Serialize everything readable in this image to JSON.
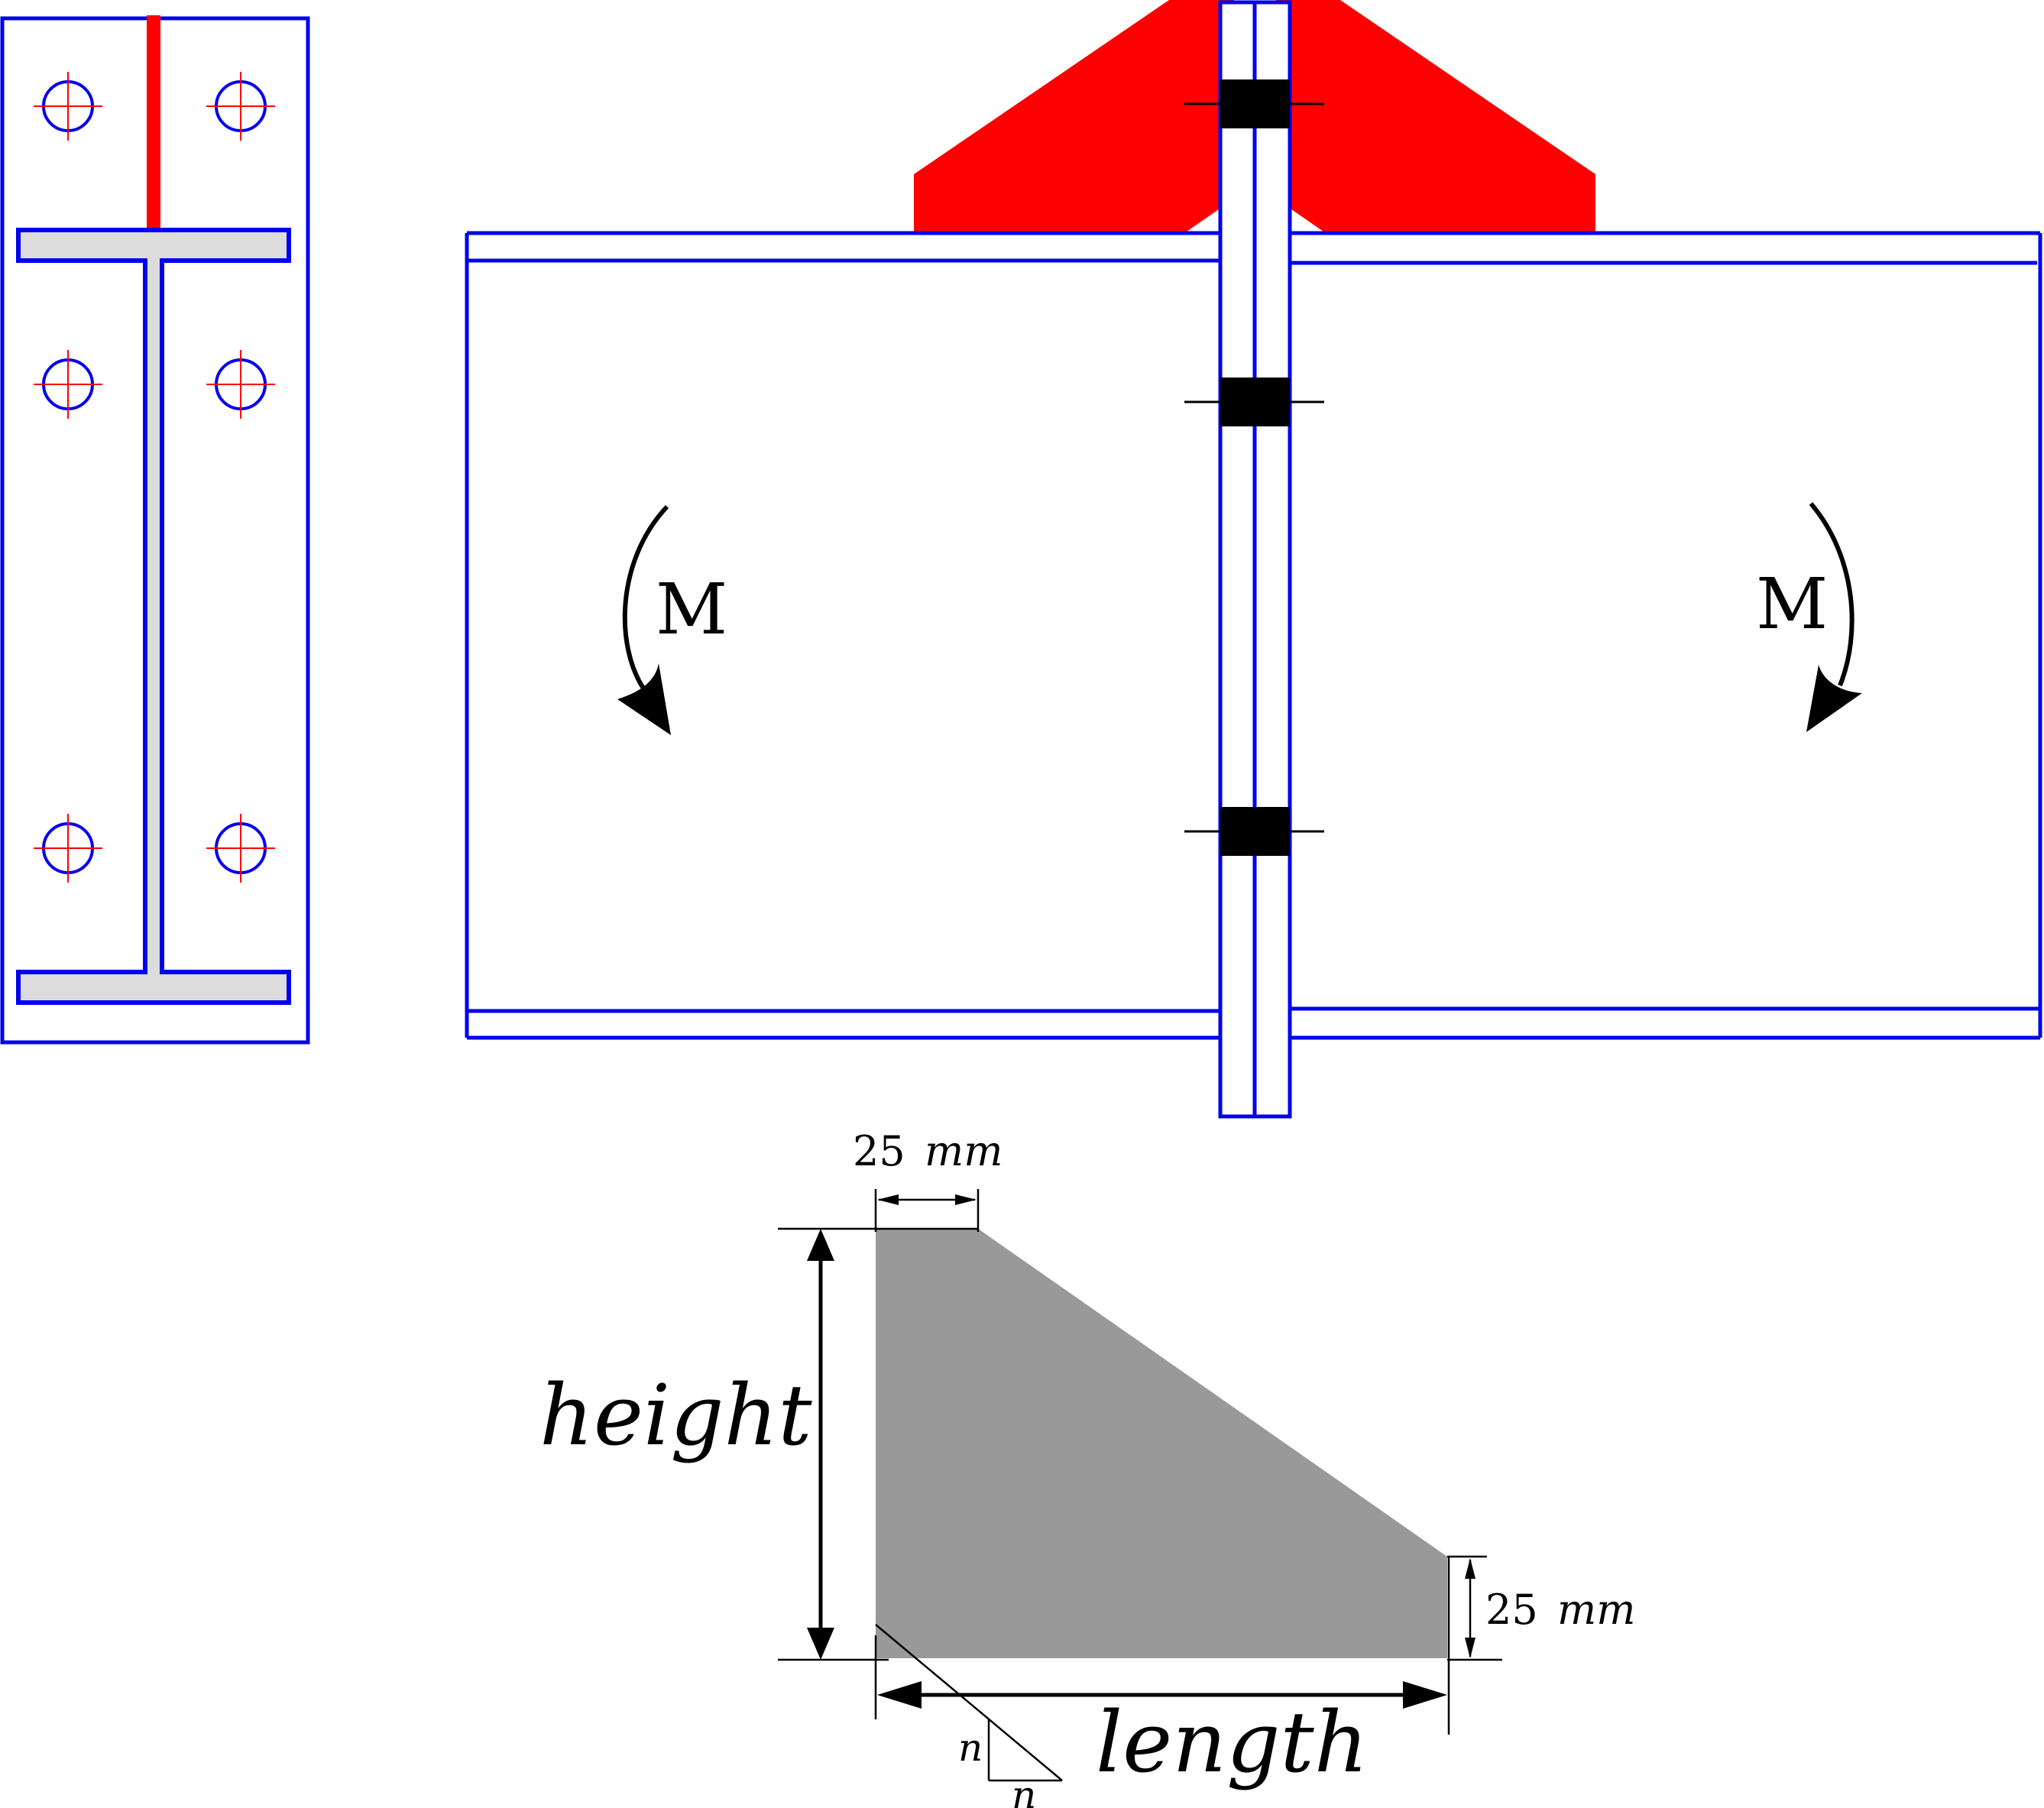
{
  "labels": {
    "moment_left": "M",
    "moment_right": "M",
    "dim_top_value": "25",
    "dim_top_unit": "mm",
    "dim_right_value": "25",
    "dim_right_unit": "mm",
    "height": "height",
    "length": "length",
    "weld_leg_vertical": "n",
    "weld_leg_horizontal": "n"
  },
  "colors": {
    "steel_outline": "#0000ee",
    "weld_gusset": "#ff0000",
    "bolt_marks": "#ff0000",
    "flange_fill": "#dcdcdc",
    "bolt_block": "#000000",
    "gusset_fill": "#999999",
    "dimension_lines": "#000000"
  },
  "icons": {
    "moment_arrow_left": "curved-arrow-clockwise-icon",
    "moment_arrow_right": "curved-arrow-clockwise-icon"
  }
}
